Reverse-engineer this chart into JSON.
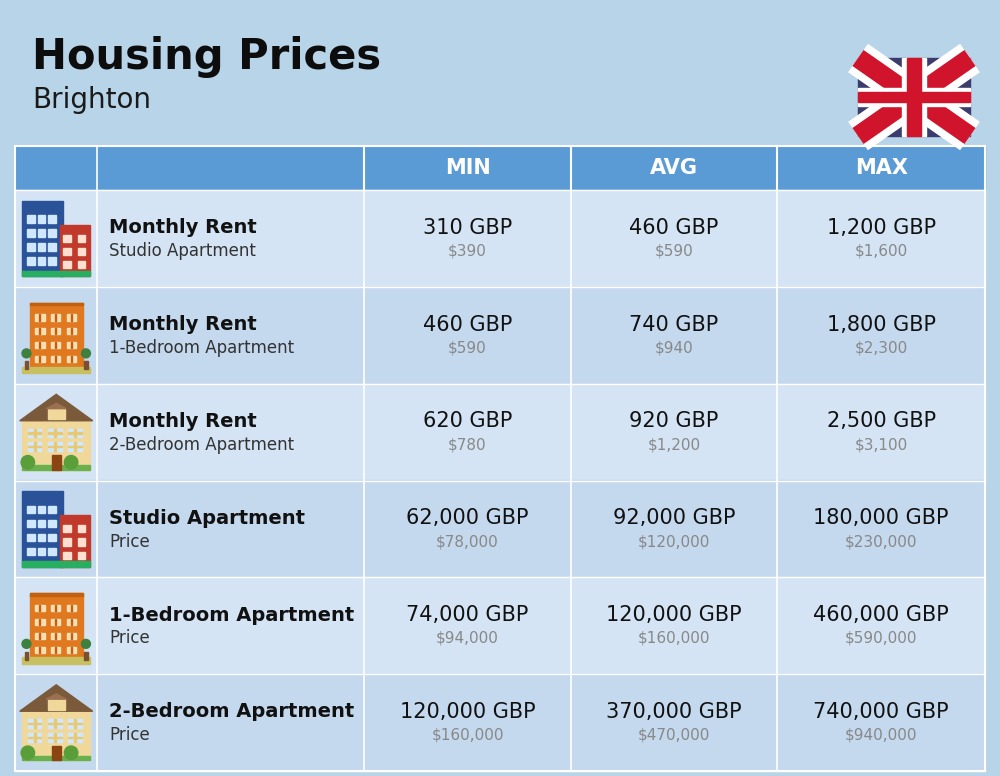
{
  "title": "Housing Prices",
  "subtitle": "Brighton",
  "bg_color": "#b8d4e8",
  "header_color": "#5b9bd5",
  "header_text_color": "#ffffff",
  "row_bg_light": "#dae8f5",
  "row_bg_medium": "#c8ddf0",
  "col_headers": [
    "MIN",
    "AVG",
    "MAX"
  ],
  "rows": [
    {
      "bold_label": "Monthly Rent",
      "sub_label": "Studio Apartment",
      "min_gbp": "310 GBP",
      "min_usd": "$390",
      "avg_gbp": "460 GBP",
      "avg_usd": "$590",
      "max_gbp": "1,200 GBP",
      "max_usd": "$1,600",
      "icon_type": "studio_blue"
    },
    {
      "bold_label": "Monthly Rent",
      "sub_label": "1-Bedroom Apartment",
      "min_gbp": "460 GBP",
      "min_usd": "$590",
      "avg_gbp": "740 GBP",
      "avg_usd": "$940",
      "max_gbp": "1,800 GBP",
      "max_usd": "$2,300",
      "icon_type": "apartment_orange"
    },
    {
      "bold_label": "Monthly Rent",
      "sub_label": "2-Bedroom Apartment",
      "min_gbp": "620 GBP",
      "min_usd": "$780",
      "avg_gbp": "920 GBP",
      "avg_usd": "$1,200",
      "max_gbp": "2,500 GBP",
      "max_usd": "$3,100",
      "icon_type": "house_beige"
    },
    {
      "bold_label": "Studio Apartment",
      "sub_label": "Price",
      "min_gbp": "62,000 GBP",
      "min_usd": "$78,000",
      "avg_gbp": "92,000 GBP",
      "avg_usd": "$120,000",
      "max_gbp": "180,000 GBP",
      "max_usd": "$230,000",
      "icon_type": "studio_blue"
    },
    {
      "bold_label": "1-Bedroom Apartment",
      "sub_label": "Price",
      "min_gbp": "74,000 GBP",
      "min_usd": "$94,000",
      "avg_gbp": "120,000 GBP",
      "avg_usd": "$160,000",
      "max_gbp": "460,000 GBP",
      "max_usd": "$590,000",
      "icon_type": "apartment_orange"
    },
    {
      "bold_label": "2-Bedroom Apartment",
      "sub_label": "Price",
      "min_gbp": "120,000 GBP",
      "min_usd": "$160,000",
      "avg_gbp": "370,000 GBP",
      "avg_usd": "$470,000",
      "max_gbp": "740,000 GBP",
      "max_usd": "$940,000",
      "icon_type": "house_beige"
    }
  ],
  "title_fontsize": 30,
  "subtitle_fontsize": 20,
  "header_fontsize": 15,
  "cell_gbp_fontsize": 15,
  "cell_usd_fontsize": 11,
  "label_bold_fontsize": 14,
  "label_sub_fontsize": 12
}
